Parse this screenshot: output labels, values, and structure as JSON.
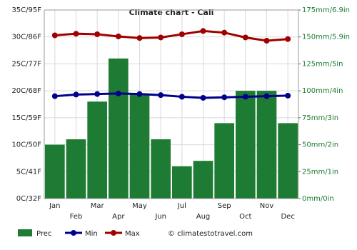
{
  "chart_data": {
    "type": "combo",
    "title": "Climate chart - Cali",
    "categories": [
      "Jan",
      "Feb",
      "Mar",
      "Apr",
      "May",
      "Jun",
      "Jul",
      "Aug",
      "Sep",
      "Oct",
      "Nov",
      "Dec"
    ],
    "series": [
      {
        "name": "Prec",
        "type": "bar",
        "axis": "y2",
        "color": "#1e7b33",
        "values": [
          50,
          55,
          90,
          130,
          97,
          55,
          30,
          35,
          70,
          100,
          100,
          70
        ]
      },
      {
        "name": "Min",
        "type": "line",
        "color": "#00008b",
        "values": [
          19.0,
          19.3,
          19.4,
          19.5,
          19.4,
          19.2,
          18.9,
          18.7,
          18.8,
          18.9,
          19.0,
          19.1
        ]
      },
      {
        "name": "Max",
        "type": "line",
        "color": "#a00000",
        "values": [
          30.3,
          30.6,
          30.5,
          30.1,
          29.8,
          29.9,
          30.5,
          31.1,
          30.8,
          29.9,
          29.3,
          29.6
        ]
      }
    ],
    "ylim": [
      0,
      35
    ],
    "yticks": [
      {
        "value": 0,
        "label": "0C/32F"
      },
      {
        "value": 5,
        "label": "5C/41F"
      },
      {
        "value": 10,
        "label": "10C/50F"
      },
      {
        "value": 15,
        "label": "15C/59F"
      },
      {
        "value": 20,
        "label": "20C/68F"
      },
      {
        "value": 25,
        "label": "25C/77F"
      },
      {
        "value": 30,
        "label": "30C/86F"
      },
      {
        "value": 35,
        "label": "35C/95F"
      }
    ],
    "y2lim": [
      0,
      175
    ],
    "y2ticks": [
      {
        "value": 0,
        "label": "0mm/0in"
      },
      {
        "value": 25,
        "label": "25mm/1in"
      },
      {
        "value": 50,
        "label": "50mm/2in"
      },
      {
        "value": 75,
        "label": "75mm/3in"
      },
      {
        "value": 100,
        "label": "100mm/4in"
      },
      {
        "value": 125,
        "label": "125mm/5in"
      },
      {
        "value": 150,
        "label": "150mm/5.9in"
      },
      {
        "value": 175,
        "label": "175mm/6.9in"
      }
    ],
    "grid": true,
    "watermark": "© climatestotravel.com"
  }
}
